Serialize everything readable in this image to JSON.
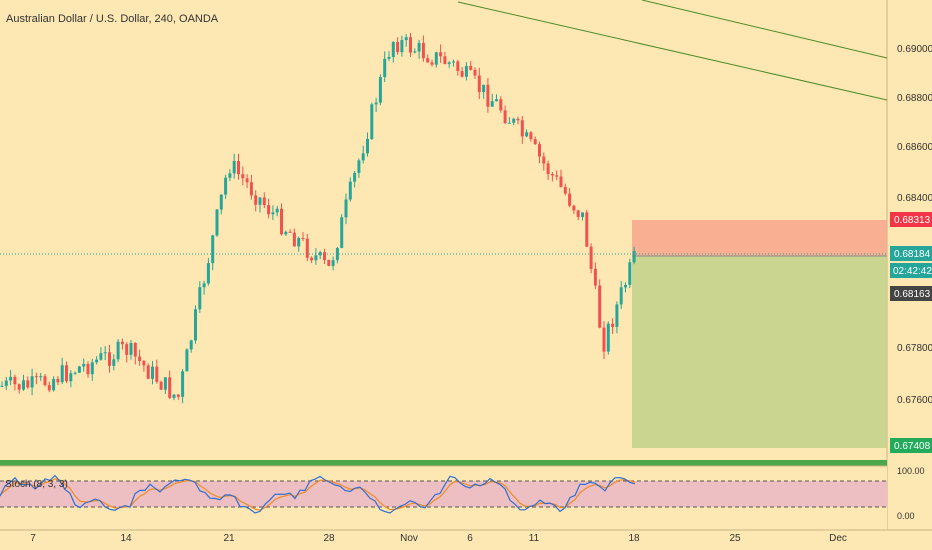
{
  "header": {
    "title": "Australian Dollar / U.S. Dollar, 240, OANDA"
  },
  "price_axis": {
    "ticks": [
      "0.69000",
      "0.68800",
      "0.68600",
      "0.68400",
      "0.67800",
      "0.67600"
    ],
    "tick_values": [
      0.69,
      0.688,
      0.686,
      0.684,
      0.678,
      0.676
    ],
    "labels": {
      "stop": {
        "text": "0.68313",
        "value": 0.68313,
        "color": "#f23645"
      },
      "entry": {
        "text": "0.68184",
        "value": 0.68184,
        "color": "#26a69a"
      },
      "countdown": {
        "text": "02:42:42",
        "color": "#26a69a"
      },
      "last": {
        "text": "0.68163",
        "value": 0.68163,
        "color": "#444444"
      },
      "target": {
        "text": "0.67408",
        "value": 0.67408,
        "color": "#22ab5a"
      }
    }
  },
  "time_axis": {
    "ticks": [
      "7",
      "14",
      "21",
      "28",
      "Nov",
      "6",
      "11",
      "18",
      "25",
      "Dec"
    ]
  },
  "indicator": {
    "label": "Stoch (8, 3, 3)",
    "ticks": [
      "100.00",
      "0.00"
    ],
    "upper_band": 80,
    "lower_band": 20
  },
  "position": {
    "type": "short",
    "entry": 0.68184,
    "stop": 0.68313,
    "target": 0.67408
  },
  "colors": {
    "background": "#fde7b2",
    "up_candle": "#26a69a",
    "down_candle": "#ef5350",
    "trendline": "#4e8a2a",
    "risk_zone": "#f8a98e",
    "reward_zone": "#c7d58e",
    "support_band": "#4aa84a",
    "stoch_band": "#eab7c4",
    "stoch_k": "#2f6fd1",
    "stoch_d": "#f08a24"
  },
  "chart_data": {
    "type": "candlestick",
    "title": "Australian Dollar / U.S. Dollar, 240, OANDA",
    "x_ticks": [
      "7",
      "14",
      "21",
      "28",
      "Nov",
      "6",
      "11",
      "18",
      "25",
      "Dec"
    ],
    "ylim": [
      0.6744,
      0.6916
    ],
    "key_levels": {
      "entry": 0.68184,
      "stop": 0.68313,
      "target": 0.67408,
      "last": 0.68163
    },
    "price_path": [
      {
        "x": "7",
        "y": 0.6765
      },
      {
        "x": "14",
        "y": 0.678
      },
      {
        "x": "17",
        "y": 0.676
      },
      {
        "x": "21",
        "y": 0.6855
      },
      {
        "x": "25",
        "y": 0.683
      },
      {
        "x": "28",
        "y": 0.6812
      },
      {
        "x": "Nov",
        "y": 0.6905
      },
      {
        "x": "5",
        "y": 0.6895
      },
      {
        "x": "9",
        "y": 0.6878
      },
      {
        "x": "11",
        "y": 0.686
      },
      {
        "x": "15",
        "y": 0.6833
      },
      {
        "x": "16",
        "y": 0.6782
      },
      {
        "x": "18",
        "y": 0.6816
      }
    ]
  }
}
